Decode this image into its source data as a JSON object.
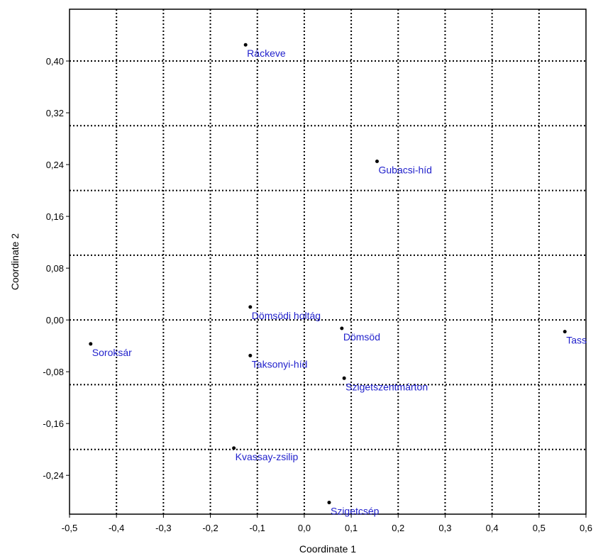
{
  "chart_data": {
    "type": "scatter",
    "title": "",
    "xlabel": "Coordinate 1",
    "ylabel": "Coordinate 2",
    "xlim": [
      -0.5,
      0.6
    ],
    "ylim": [
      -0.3,
      0.48
    ],
    "x_ticks": [
      -0.5,
      -0.4,
      -0.3,
      -0.2,
      -0.1,
      0.0,
      0.1,
      0.2,
      0.3,
      0.4,
      0.5,
      0.6
    ],
    "x_tick_labels": [
      "-0,5",
      "-0,4",
      "-0,3",
      "-0,2",
      "-0,1",
      "0,0",
      "0,1",
      "0,2",
      "0,3",
      "0,4",
      "0,5",
      "0,6"
    ],
    "y_ticks": [
      0.4,
      0.32,
      0.24,
      0.16,
      0.08,
      0.0,
      -0.08,
      -0.16,
      -0.24
    ],
    "y_tick_labels": [
      "0,40",
      "0,32",
      "0,24",
      "0,16",
      "0,08",
      "0,00",
      "-0,08",
      "-0,16",
      "-0,24"
    ],
    "grid_x": [
      -0.4,
      -0.3,
      -0.2,
      -0.1,
      0.0,
      0.1,
      0.2,
      0.3,
      0.4,
      0.5
    ],
    "grid_y": [
      0.4,
      0.3,
      0.2,
      0.1,
      0.0,
      -0.1,
      -0.2
    ],
    "grid": true,
    "point_color": "#000000",
    "label_color": "#2222cc",
    "points": [
      {
        "label": "Ráckeve",
        "x": -0.125,
        "y": 0.425
      },
      {
        "label": "Gubacsi-híd",
        "x": 0.155,
        "y": 0.245
      },
      {
        "label": "Dömsödi holtág",
        "x": -0.115,
        "y": 0.02
      },
      {
        "label": "Dömsöd",
        "x": 0.08,
        "y": -0.013
      },
      {
        "label": "Tass",
        "x": 0.555,
        "y": -0.018
      },
      {
        "label": "Soroksár",
        "x": -0.455,
        "y": -0.037
      },
      {
        "label": "Taksonyi-híd",
        "x": -0.115,
        "y": -0.055
      },
      {
        "label": "Szigetszentmárton",
        "x": 0.085,
        "y": -0.09
      },
      {
        "label": "Kvassay-zsilip",
        "x": -0.15,
        "y": -0.198
      },
      {
        "label": "Szigetcsép",
        "x": 0.053,
        "y": -0.282
      }
    ]
  }
}
